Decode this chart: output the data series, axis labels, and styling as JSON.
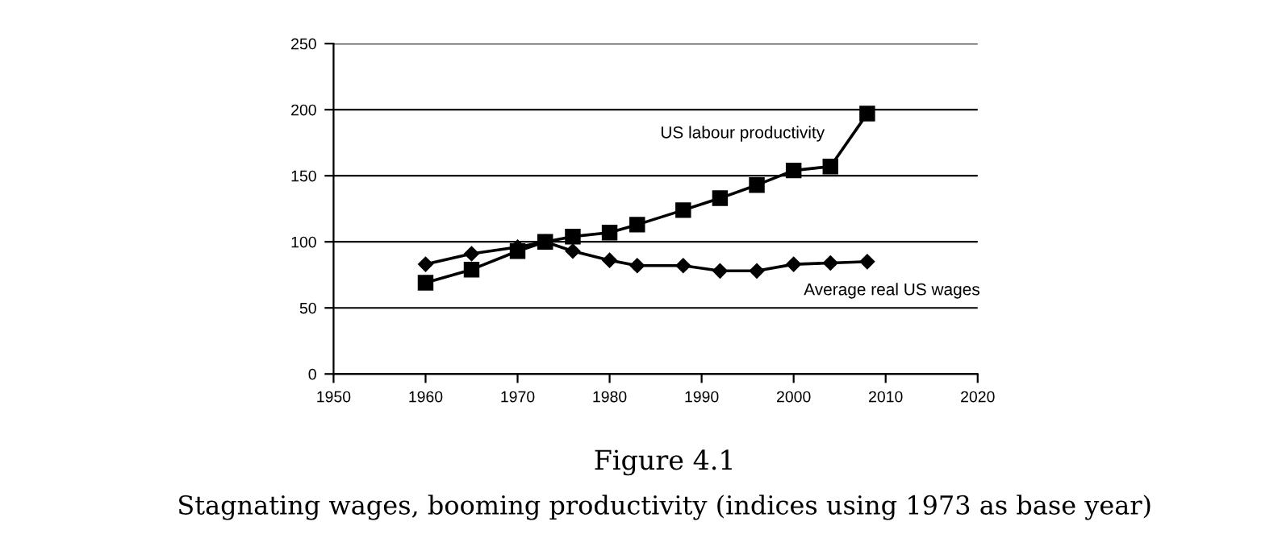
{
  "chart_data": {
    "type": "line",
    "title": "Figure 4.1",
    "subtitle": "Stagnating wages, booming productivity (indices using 1973 as base year)",
    "x": [
      1960,
      1965,
      1970,
      1973,
      1976,
      1980,
      1983,
      1988,
      1992,
      1996,
      2000,
      2004,
      2008
    ],
    "series": [
      {
        "name": "US labour productivity",
        "color": "#000000",
        "marker": "square",
        "values": [
          69,
          79,
          93,
          100,
          104,
          107,
          113,
          124,
          133,
          143,
          154,
          157,
          197
        ]
      },
      {
        "name": "Average real US wages",
        "color": "#000000",
        "marker": "diamond",
        "values": [
          83,
          91,
          96,
          100,
          93,
          86,
          82,
          82,
          78,
          78,
          83,
          84,
          85
        ]
      }
    ],
    "xlim": [
      1950,
      2020
    ],
    "xticks": [
      1950,
      1960,
      1970,
      1980,
      1990,
      2000,
      2010,
      2020
    ],
    "ylim": [
      0,
      250
    ],
    "yticks": [
      0,
      50,
      100,
      150,
      200,
      250
    ],
    "grid": "y",
    "legend": false
  }
}
